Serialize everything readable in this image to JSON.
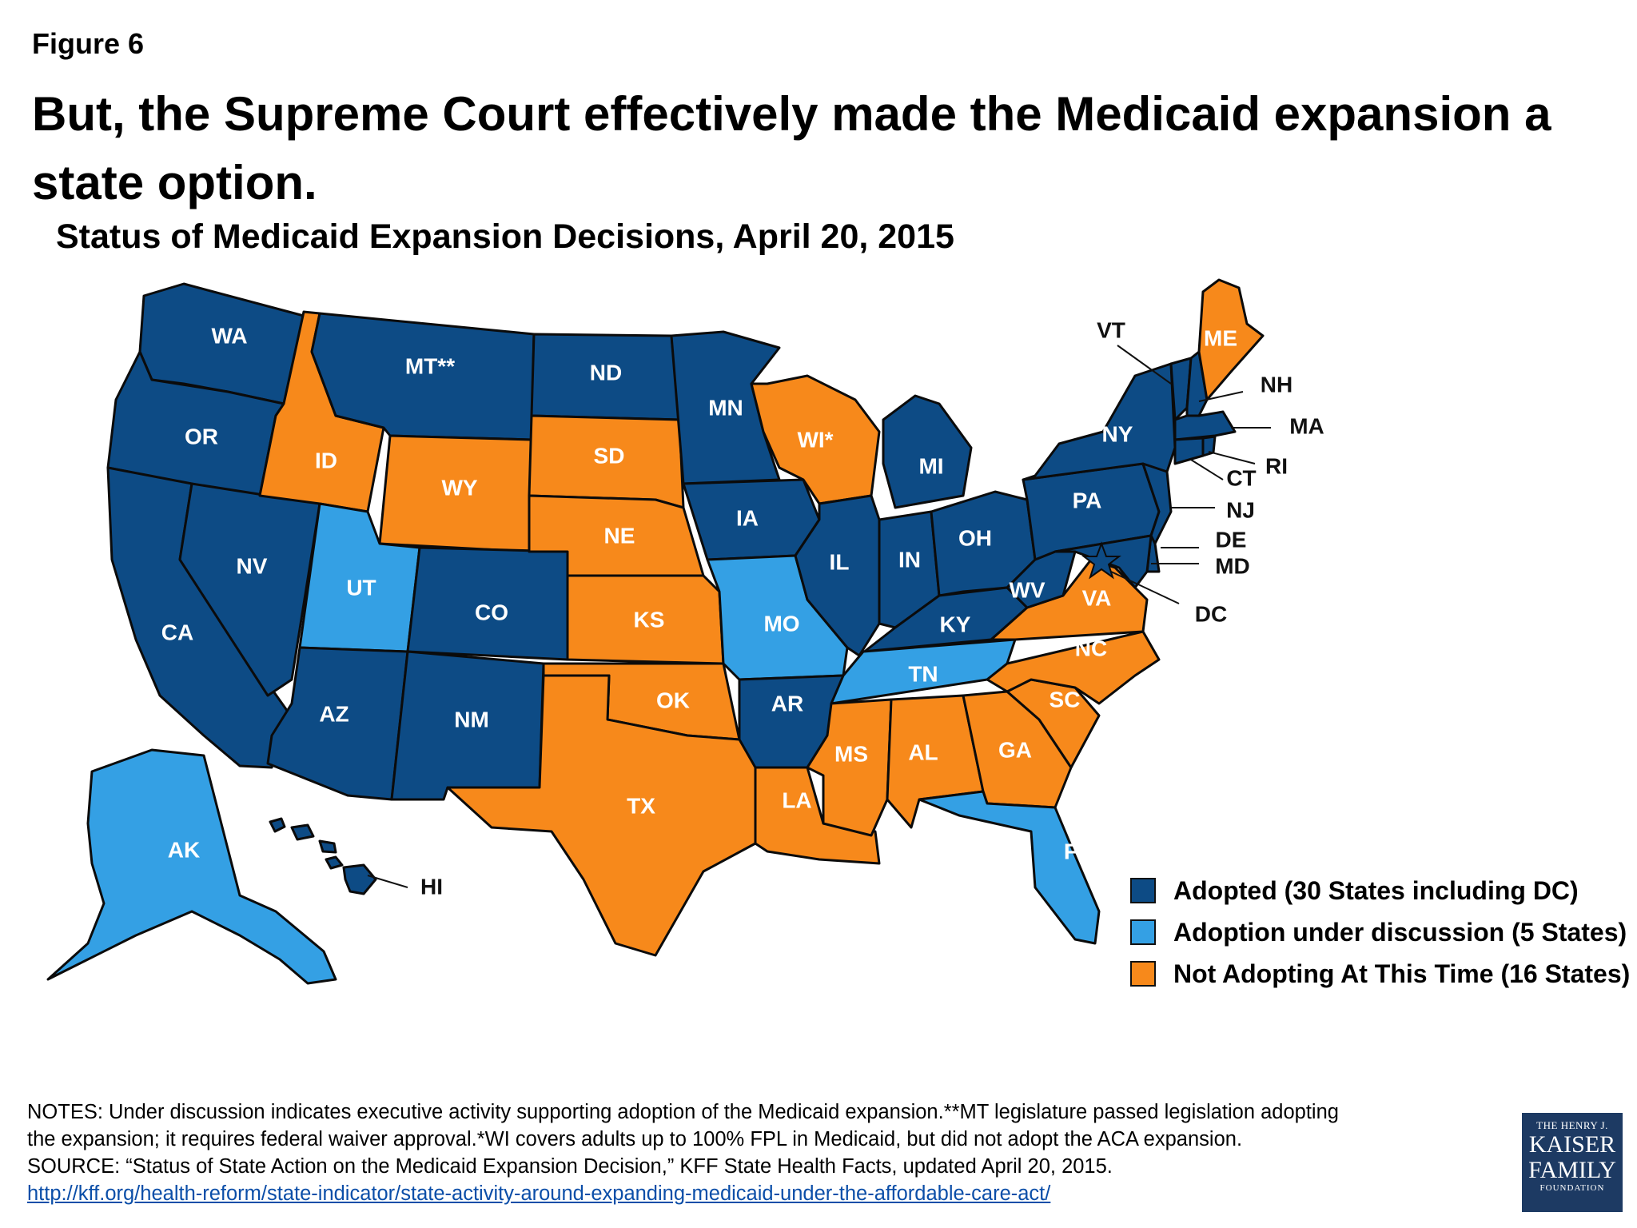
{
  "figure_label": "Figure 6",
  "title": "But, the Supreme Court effectively made the Medicaid expansion a state option.",
  "subtitle": "Status of Medicaid Expansion Decisions, April 20, 2015",
  "colors": {
    "adopted": "#0d4b85",
    "under_discussion": "#34a0e4",
    "not_adopting": "#f7891b"
  },
  "legend": {
    "adopted": "Adopted (30 States including DC)",
    "under_discussion": "Adoption under discussion (5 States)",
    "not_adopting": "Not Adopting At This Time (16 States)"
  },
  "states": {
    "WA": {
      "label": "WA",
      "status": "adopted"
    },
    "OR": {
      "label": "OR",
      "status": "adopted"
    },
    "CA": {
      "label": "CA",
      "status": "adopted"
    },
    "NV": {
      "label": "NV",
      "status": "adopted"
    },
    "ID": {
      "label": "ID",
      "status": "not_adopting"
    },
    "MT": {
      "label": "MT**",
      "status": "adopted"
    },
    "WY": {
      "label": "WY",
      "status": "not_adopting"
    },
    "UT": {
      "label": "UT",
      "status": "under_discussion"
    },
    "AZ": {
      "label": "AZ",
      "status": "adopted"
    },
    "CO": {
      "label": "CO",
      "status": "adopted"
    },
    "NM": {
      "label": "NM",
      "status": "adopted"
    },
    "ND": {
      "label": "ND",
      "status": "adopted"
    },
    "SD": {
      "label": "SD",
      "status": "not_adopting"
    },
    "NE": {
      "label": "NE",
      "status": "not_adopting"
    },
    "KS": {
      "label": "KS",
      "status": "not_adopting"
    },
    "OK": {
      "label": "OK",
      "status": "not_adopting"
    },
    "TX": {
      "label": "TX",
      "status": "not_adopting"
    },
    "MN": {
      "label": "MN",
      "status": "adopted"
    },
    "IA": {
      "label": "IA",
      "status": "adopted"
    },
    "MO": {
      "label": "MO",
      "status": "under_discussion"
    },
    "AR": {
      "label": "AR",
      "status": "adopted"
    },
    "LA": {
      "label": "LA",
      "status": "not_adopting"
    },
    "WI": {
      "label": "WI*",
      "status": "not_adopting"
    },
    "IL": {
      "label": "IL",
      "status": "adopted"
    },
    "MI": {
      "label": "MI",
      "status": "adopted"
    },
    "IN": {
      "label": "IN",
      "status": "adopted"
    },
    "OH": {
      "label": "OH",
      "status": "adopted"
    },
    "KY": {
      "label": "KY",
      "status": "adopted"
    },
    "TN": {
      "label": "TN",
      "status": "under_discussion"
    },
    "MS": {
      "label": "MS",
      "status": "not_adopting"
    },
    "AL": {
      "label": "AL",
      "status": "not_adopting"
    },
    "GA": {
      "label": "GA",
      "status": "not_adopting"
    },
    "FL": {
      "label": "FL",
      "status": "under_discussion"
    },
    "SC": {
      "label": "SC",
      "status": "not_adopting"
    },
    "NC": {
      "label": "NC",
      "status": "not_adopting"
    },
    "VA": {
      "label": "VA",
      "status": "not_adopting"
    },
    "WV": {
      "label": "WV",
      "status": "adopted"
    },
    "PA": {
      "label": "PA",
      "status": "adopted"
    },
    "NY": {
      "label": "NY",
      "status": "adopted"
    },
    "ME": {
      "label": "ME",
      "status": "not_adopting"
    },
    "VT": {
      "label": "VT",
      "status": "adopted"
    },
    "NH": {
      "label": "NH",
      "status": "adopted"
    },
    "MA": {
      "label": "MA",
      "status": "adopted"
    },
    "RI": {
      "label": "RI",
      "status": "adopted"
    },
    "CT": {
      "label": "CT",
      "status": "adopted"
    },
    "NJ": {
      "label": "NJ",
      "status": "adopted"
    },
    "DE": {
      "label": "DE",
      "status": "adopted"
    },
    "MD": {
      "label": "MD",
      "status": "adopted"
    },
    "DC": {
      "label": "DC",
      "status": "adopted"
    },
    "AK": {
      "label": "AK",
      "status": "under_discussion"
    },
    "HI": {
      "label": "HI",
      "status": "adopted"
    }
  },
  "notes": {
    "line1": "NOTES: Under discussion indicates executive activity supporting adoption of the Medicaid expansion.**MT legislature passed legislation adopting",
    "line2": "the expansion; it requires federal waiver approval.*WI covers adults up to 100% FPL in Medicaid, but did not adopt the ACA expansion.",
    "line3": "SOURCE: “Status of State Action on the Medicaid Expansion Decision,” KFF State Health Facts, updated April 20, 2015.",
    "link": "http://kff.org/health-reform/state-indicator/state-activity-around-expanding-medicaid-under-the-affordable-care-act/"
  },
  "logo": {
    "line1": "THE HENRY J.",
    "line2": "KAISER",
    "line3": "FAMILY",
    "line4": "FOUNDATION"
  }
}
